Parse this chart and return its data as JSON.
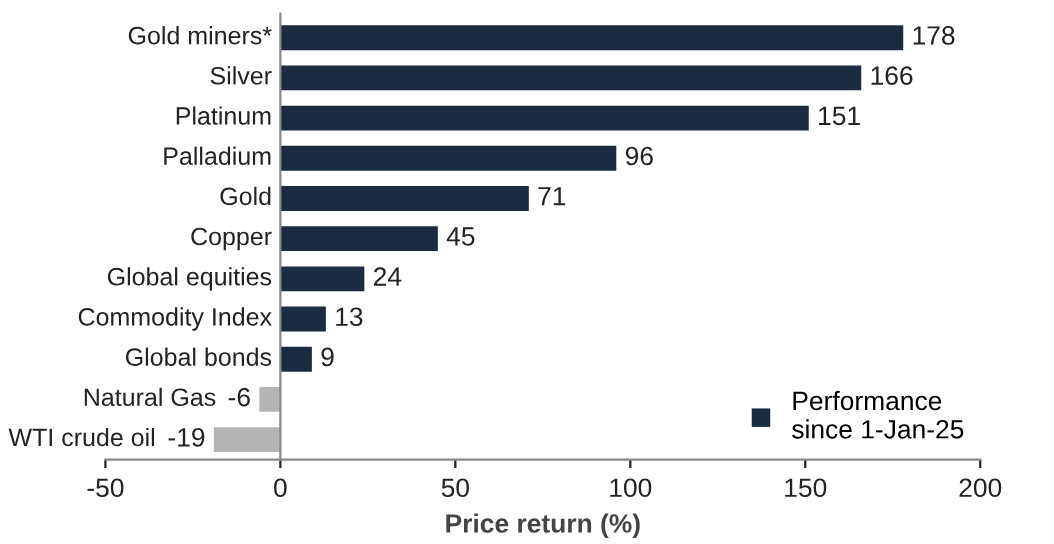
{
  "chart_data": {
    "type": "bar",
    "orientation": "horizontal",
    "xlabel": "Price return (%)",
    "categories": [
      "Gold miners*",
      "Silver",
      "Platinum",
      "Palladium",
      "Gold",
      "Copper",
      "Global equities",
      "Commodity Index",
      "Global bonds",
      "Natural Gas",
      "WTI crude oil"
    ],
    "series": [
      {
        "name": "Performance\nsince 1-Jan-25",
        "color": "#1c2b3f",
        "colors": [
          "#1c2b3f",
          "#1c2b3f",
          "#1c2b3f",
          "#1c2b3f",
          "#1c2b3f",
          "#1c2b3f",
          "#1c2b3f",
          "#1c2b3f",
          "#1c2b3f",
          "#b4b4b4",
          "#b4b4b4"
        ],
        "values": [
          178,
          166,
          151,
          96,
          71,
          45,
          24,
          13,
          9,
          -6,
          -19
        ]
      }
    ],
    "data_labels": true,
    "xlim": [
      -50,
      200
    ],
    "xticks": [
      -50,
      0,
      50,
      100,
      150,
      200
    ],
    "grid": false,
    "legend": "bottom right"
  }
}
